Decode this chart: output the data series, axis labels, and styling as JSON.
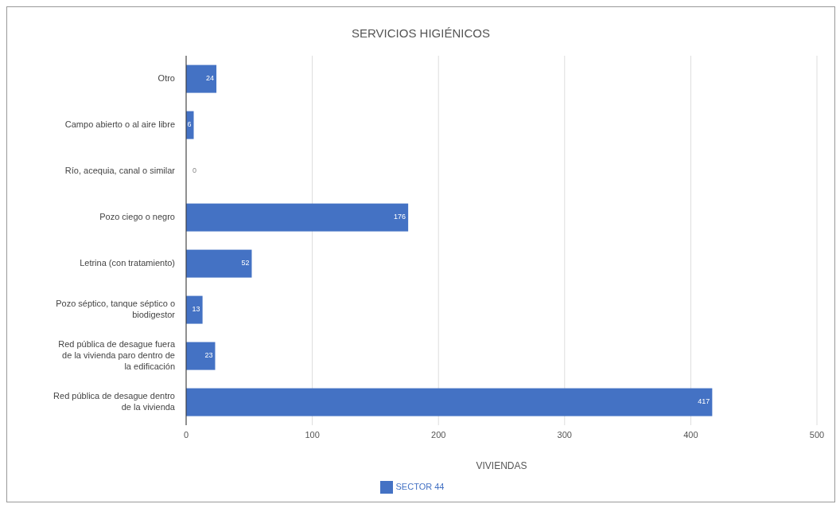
{
  "chart_data": {
    "type": "bar",
    "orientation": "horizontal",
    "title": "SERVICIOS HIGIÉNICOS",
    "xlabel": "VIVIENDAS",
    "categories": [
      "Otro",
      "Campo abierto o al aire libre",
      "Río, acequia, canal o similar",
      "Pozo ciego o negro",
      "Letrina (con tratamiento)",
      "Pozo séptico, tanque séptico o biodigestor",
      "Red pública de desague fuera de la vivienda paro dentro de la edificación",
      "Red pública de desague dentro de la vivienda"
    ],
    "series": [
      {
        "name": "SECTOR 44",
        "color": "#4472c4",
        "values": [
          24,
          6,
          0,
          176,
          52,
          13,
          23,
          417
        ]
      }
    ],
    "xlim": [
      0,
      500
    ],
    "xticks": [
      0,
      100,
      200,
      300,
      400,
      500
    ],
    "grid": "x",
    "legend": "bottom",
    "data_labels": true
  }
}
